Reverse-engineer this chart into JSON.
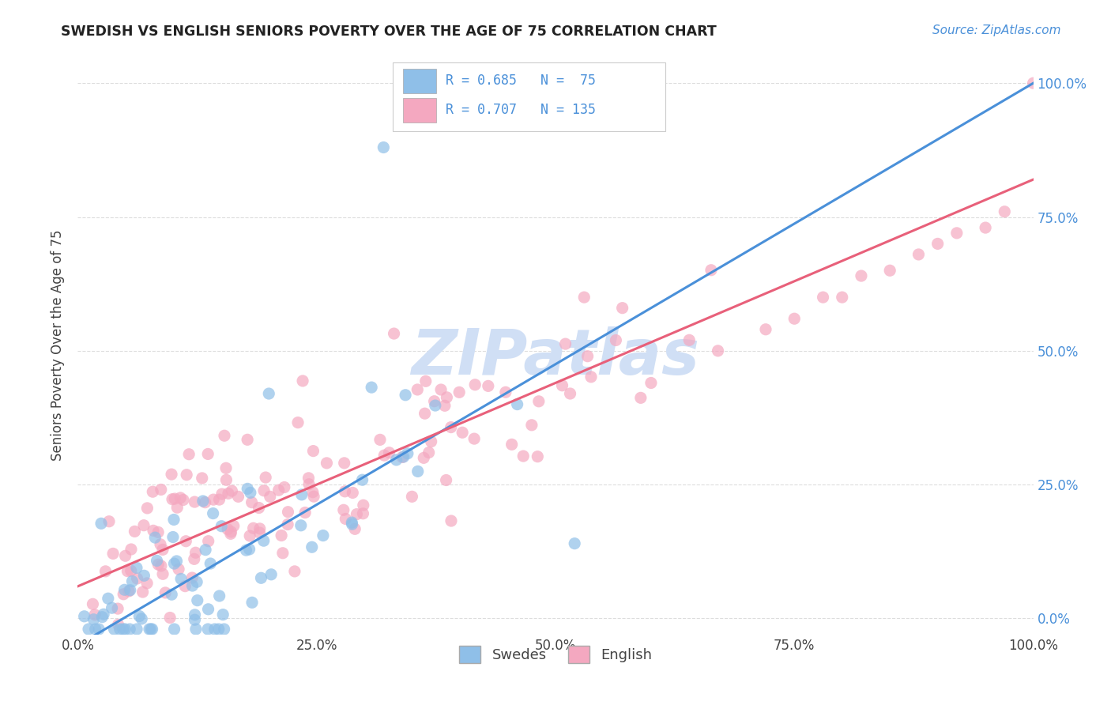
{
  "title": "SWEDISH VS ENGLISH SENIORS POVERTY OVER THE AGE OF 75 CORRELATION CHART",
  "source": "Source: ZipAtlas.com",
  "ylabel": "Seniors Poverty Over the Age of 75",
  "R_swedes": 0.685,
  "N_swedes": 75,
  "R_english": 0.707,
  "N_english": 135,
  "swedes_color": "#8fbfe8",
  "english_color": "#f4a8c0",
  "swedes_line_color": "#4a90d9",
  "english_line_color": "#e8607a",
  "watermark_text": "ZIPatlas",
  "watermark_color": "#d0dff5",
  "background_color": "#ffffff",
  "xlim": [
    0,
    1.0
  ],
  "ylim": [
    -0.03,
    1.05
  ],
  "xticks": [
    0,
    0.25,
    0.5,
    0.75,
    1.0
  ],
  "yticks": [
    0,
    0.25,
    0.5,
    0.75,
    1.0
  ],
  "xticklabels": [
    "0.0%",
    "25.0%",
    "50.0%",
    "75.0%",
    "100.0%"
  ],
  "right_yticklabels": [
    "0.0%",
    "25.0%",
    "50.0%",
    "75.0%",
    "100.0%"
  ],
  "sw_line_x0": 0.0,
  "sw_line_y0": -0.05,
  "sw_line_x1": 1.0,
  "sw_line_y1": 1.0,
  "en_line_x0": 0.0,
  "en_line_y0": 0.06,
  "en_line_x1": 1.0,
  "en_line_y1": 0.82,
  "seed_sw": 17,
  "seed_en": 99
}
